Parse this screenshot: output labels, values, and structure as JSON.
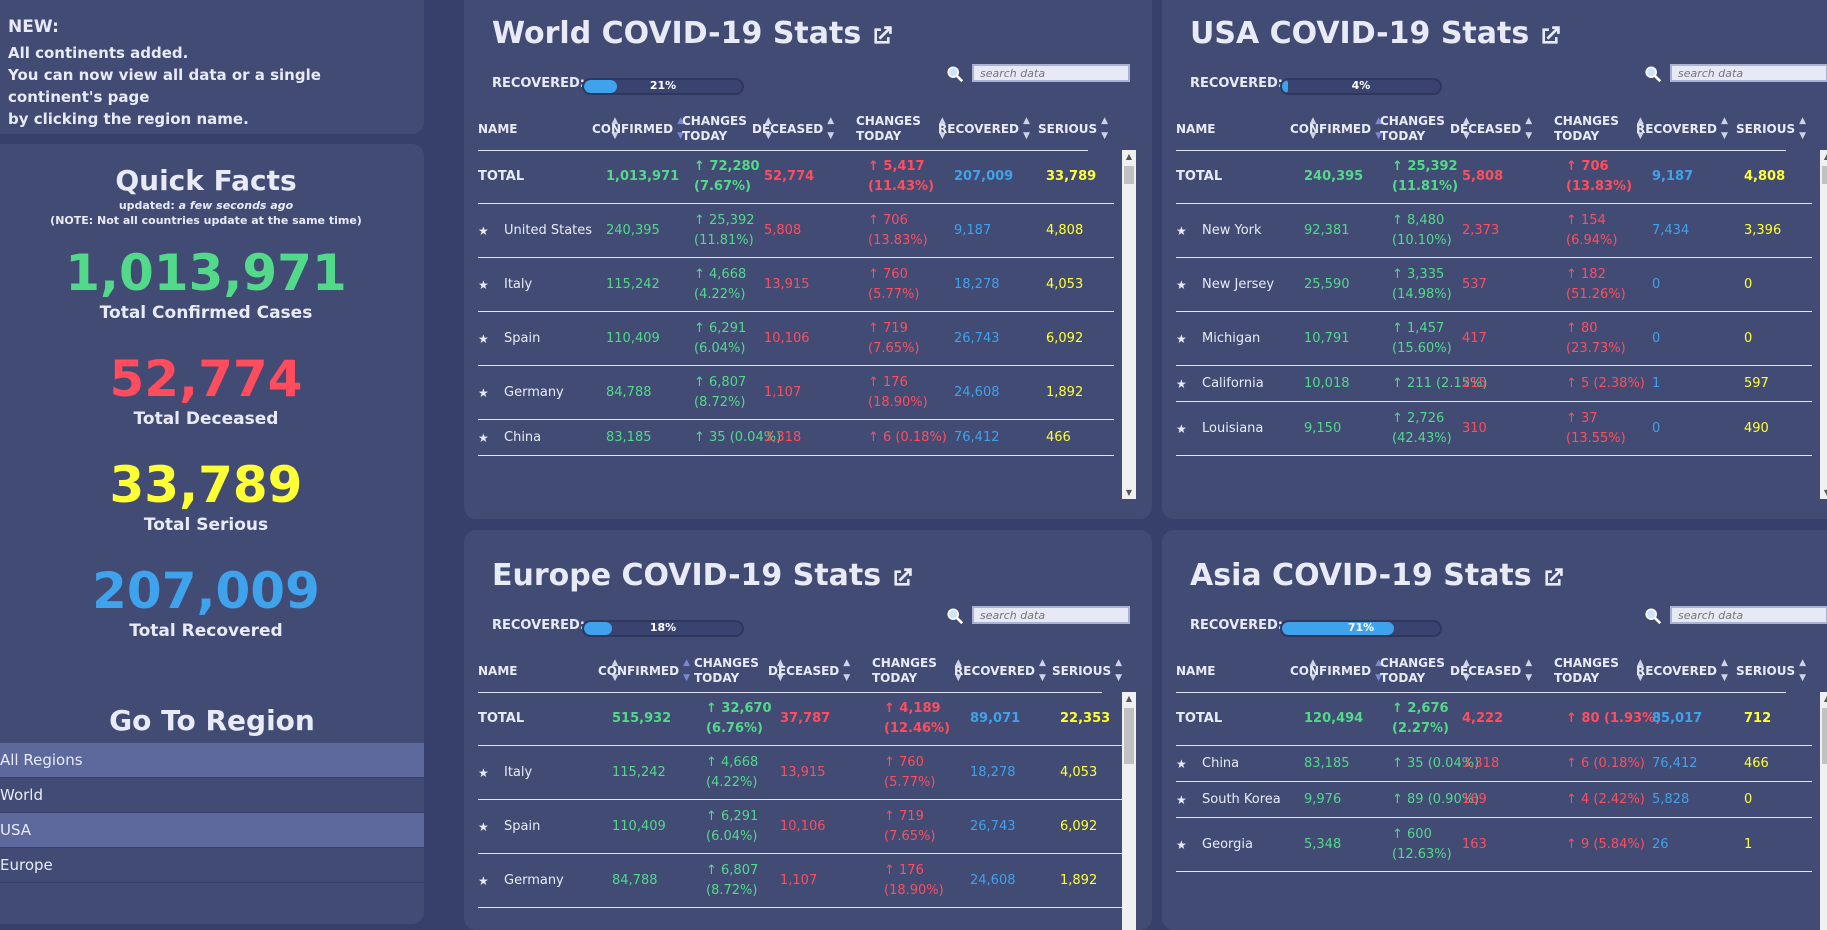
{
  "news": {
    "heading": "NEW:",
    "lines": [
      "All continents added.",
      "You can now view all data or a single continent's page",
      "by clicking the region name."
    ]
  },
  "quick_facts": {
    "title": "Quick Facts",
    "updated_prefix": "updated:",
    "updated_value": "a few seconds ago",
    "note": "(NOTE: Not all countries update at the same time)",
    "confirmed": "1,013,971",
    "confirmed_label": "Total Confirmed Cases",
    "deceased": "52,774",
    "deceased_label": "Total Deceased",
    "serious": "33,789",
    "serious_label": "Total Serious",
    "recovered": "207,009",
    "recovered_label": "Total Recovered"
  },
  "go_to_region": {
    "title": "Go To Region",
    "items": [
      "All Regions",
      "World",
      "USA",
      "Europe"
    ]
  },
  "colors": {
    "green": "#52d98a",
    "red": "#ff4d5e",
    "yellow": "#ffff36",
    "blue": "#3fa2ec",
    "panel": "#424b74",
    "background": "#36406a"
  },
  "table_headers": {
    "name": "NAME",
    "confirmed": "CONFIRMED",
    "changes_1": "CHANGES",
    "changes_2": "TODAY",
    "deceased": "DECEASED",
    "recovered": "RECOVERED",
    "serious": "SERIOUS"
  },
  "recovered_label": "RECOVERED:",
  "search_placeholder": "search data",
  "panels": [
    {
      "title": "World COVID-19 Stats",
      "recovered_pct": 21,
      "recovered_text": "21%",
      "rows": [
        {
          "name": "TOTAL",
          "total": true,
          "confirmed": "1,013,971",
          "ch_conf": [
            "↑ 72,280",
            "(7.67%)"
          ],
          "deceased": "52,774",
          "ch_dec": [
            "↑ 5,417",
            "(11.43%)"
          ],
          "recovered": "207,009",
          "serious": "33,789",
          "h": 54
        },
        {
          "name": "United States",
          "confirmed": "240,395",
          "ch_conf": [
            "↑ 25,392",
            "(11.81%)"
          ],
          "deceased": "5,808",
          "ch_dec": [
            "↑ 706",
            "(13.83%)"
          ],
          "recovered": "9,187",
          "serious": "4,808",
          "h": 54
        },
        {
          "name": "Italy",
          "confirmed": "115,242",
          "ch_conf": [
            "↑ 4,668",
            "(4.22%)"
          ],
          "deceased": "13,915",
          "ch_dec": [
            "↑ 760",
            "(5.77%)"
          ],
          "recovered": "18,278",
          "serious": "4,053",
          "h": 54
        },
        {
          "name": "Spain",
          "confirmed": "110,409",
          "ch_conf": [
            "↑ 6,291",
            "(6.04%)"
          ],
          "deceased": "10,106",
          "ch_dec": [
            "↑ 719",
            "(7.65%)"
          ],
          "recovered": "26,743",
          "serious": "6,092",
          "h": 54
        },
        {
          "name": "Germany",
          "confirmed": "84,788",
          "ch_conf": [
            "↑ 6,807",
            "(8.72%)"
          ],
          "deceased": "1,107",
          "ch_dec": [
            "↑ 176",
            "(18.90%)"
          ],
          "recovered": "24,608",
          "serious": "1,892",
          "h": 54
        },
        {
          "name": "China",
          "confirmed": "83,185",
          "ch_conf": [
            "↑ 35 (0.04%)"
          ],
          "deceased": "3,318",
          "ch_dec": [
            "↑ 6 (0.18%)"
          ],
          "recovered": "76,412",
          "serious": "466",
          "h": 36
        }
      ]
    },
    {
      "title": "USA COVID-19 Stats",
      "recovered_pct": 4,
      "recovered_text": "4%",
      "rows": [
        {
          "name": "TOTAL",
          "total": true,
          "confirmed": "240,395",
          "ch_conf": [
            "↑ 25,392",
            "(11.81%)"
          ],
          "deceased": "5,808",
          "ch_dec": [
            "↑ 706",
            "(13.83%)"
          ],
          "recovered": "9,187",
          "serious": "4,808",
          "h": 54
        },
        {
          "name": "New York",
          "confirmed": "92,381",
          "ch_conf": [
            "↑ 8,480",
            "(10.10%)"
          ],
          "deceased": "2,373",
          "ch_dec": [
            "↑ 154",
            "(6.94%)"
          ],
          "recovered": "7,434",
          "serious": "3,396",
          "h": 54
        },
        {
          "name": "New Jersey",
          "confirmed": "25,590",
          "ch_conf": [
            "↑ 3,335",
            "(14.98%)"
          ],
          "deceased": "537",
          "ch_dec": [
            "↑ 182",
            "(51.26%)"
          ],
          "recovered": "0",
          "serious": "0",
          "h": 54
        },
        {
          "name": "Michigan",
          "confirmed": "10,791",
          "ch_conf": [
            "↑ 1,457",
            "(15.60%)"
          ],
          "deceased": "417",
          "ch_dec": [
            "↑ 80",
            "(23.73%)"
          ],
          "recovered": "0",
          "serious": "0",
          "h": 54
        },
        {
          "name": "California",
          "confirmed": "10,018",
          "ch_conf": [
            "↑ 211 (2.15%)"
          ],
          "deceased": "215",
          "ch_dec": [
            "↑ 5 (2.38%)"
          ],
          "recovered": "1",
          "serious": "597",
          "h": 36
        },
        {
          "name": "Louisiana",
          "confirmed": "9,150",
          "ch_conf": [
            "↑ 2,726",
            "(42.43%)"
          ],
          "deceased": "310",
          "ch_dec": [
            "↑ 37",
            "(13.55%)"
          ],
          "recovered": "0",
          "serious": "490",
          "h": 54
        }
      ]
    },
    {
      "title": "Europe COVID-19 Stats",
      "recovered_pct": 18,
      "recovered_text": "18%",
      "rows": [
        {
          "name": "TOTAL",
          "total": true,
          "confirmed": "515,932",
          "ch_conf": [
            "↑ 32,670",
            "(6.76%)"
          ],
          "deceased": "37,787",
          "ch_dec": [
            "↑ 4,189",
            "(12.46%)"
          ],
          "recovered": "89,071",
          "serious": "22,353",
          "h": 54
        },
        {
          "name": "Italy",
          "confirmed": "115,242",
          "ch_conf": [
            "↑ 4,668",
            "(4.22%)"
          ],
          "deceased": "13,915",
          "ch_dec": [
            "↑ 760",
            "(5.77%)"
          ],
          "recovered": "18,278",
          "serious": "4,053",
          "h": 54
        },
        {
          "name": "Spain",
          "confirmed": "110,409",
          "ch_conf": [
            "↑ 6,291",
            "(6.04%)"
          ],
          "deceased": "10,106",
          "ch_dec": [
            "↑ 719",
            "(7.65%)"
          ],
          "recovered": "26,743",
          "serious": "6,092",
          "h": 54
        },
        {
          "name": "Germany",
          "confirmed": "84,788",
          "ch_conf": [
            "↑ 6,807",
            "(8.72%)"
          ],
          "deceased": "1,107",
          "ch_dec": [
            "↑ 176",
            "(18.90%)"
          ],
          "recovered": "24,608",
          "serious": "1,892",
          "h": 54
        }
      ]
    },
    {
      "title": "Asia COVID-19 Stats",
      "recovered_pct": 71,
      "recovered_text": "71%",
      "rows": [
        {
          "name": "TOTAL",
          "total": true,
          "confirmed": "120,494",
          "ch_conf": [
            "↑ 2,676",
            "(2.27%)"
          ],
          "deceased": "4,222",
          "ch_dec": [
            "↑ 80 (1.93%)"
          ],
          "recovered": "85,017",
          "serious": "712",
          "h": 54
        },
        {
          "name": "China",
          "confirmed": "83,185",
          "ch_conf": [
            "↑ 35 (0.04%)"
          ],
          "deceased": "3,318",
          "ch_dec": [
            "↑ 6 (0.18%)"
          ],
          "recovered": "76,412",
          "serious": "466",
          "h": 36
        },
        {
          "name": "South Korea",
          "confirmed": "9,976",
          "ch_conf": [
            "↑ 89 (0.90%)"
          ],
          "deceased": "169",
          "ch_dec": [
            "↑ 4 (2.42%)"
          ],
          "recovered": "5,828",
          "serious": "0",
          "h": 36
        },
        {
          "name": "Georgia",
          "confirmed": "5,348",
          "ch_conf": [
            "↑ 600",
            "(12.63%)"
          ],
          "deceased": "163",
          "ch_dec": [
            "↑ 9 (5.84%)"
          ],
          "recovered": "26",
          "serious": "1",
          "h": 54
        }
      ]
    }
  ]
}
